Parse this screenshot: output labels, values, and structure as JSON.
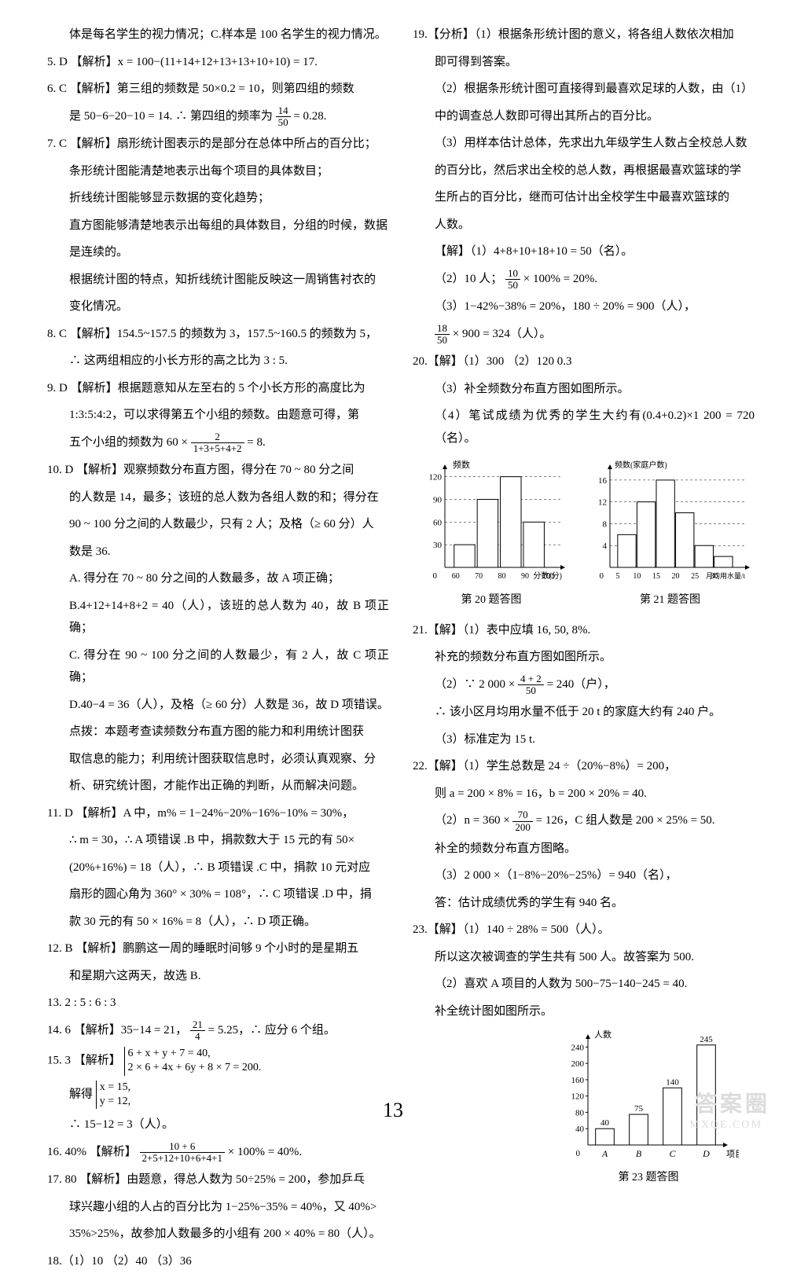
{
  "left": {
    "p0": "体是每名学生的视力情况；C.样本是 100 名学生的视力情况。",
    "p5": "5. D 【解析】x = 100−(11+14+12+13+13+10+10) = 17.",
    "p6a": "6. C 【解析】第三组的频数是 50×0.2 = 10，则第四组的频数",
    "p6b_prefix": "是 50−6−20−10 = 14. ∴ 第四组的频率为",
    "p6b_num": "14",
    "p6b_den": "50",
    "p6b_suffix": "= 0.28.",
    "p7a": "7. C 【解析】扇形统计图表示的是部分在总体中所占的百分比；",
    "p7b": "条形统计图能清楚地表示出每个项目的具体数目；",
    "p7c": "折线统计图能够显示数据的变化趋势；",
    "p7d": "直方图能够清楚地表示出每组的具体数目，分组的时候，数据",
    "p7e": "是连续的。",
    "p7f": "根据统计图的特点，知折线统计图能反映这一周销售衬衣的",
    "p7g": "变化情况。",
    "p8a": "8. C 【解析】154.5~157.5 的频数为 3，157.5~160.5 的频数为 5，",
    "p8b": "∴ 这两组相应的小长方形的高之比为 3 : 5.",
    "p9a": "9. D 【解析】根据题意知从左至右的 5 个小长方形的高度比为",
    "p9b": "1:3:5:4:2，可以求得第五个小组的频数。由题意可得，第",
    "p9c_prefix": "五个小组的频数为 60 ×",
    "p9c_num": "2",
    "p9c_den": "1+3+5+4+2",
    "p9c_suffix": "= 8.",
    "p10a": "10. D 【解析】观察频数分布直方图，得分在 70 ~ 80 分之间",
    "p10b": "的人数是 14，最多；该班的总人数为各组人数的和；得分在",
    "p10c": "90 ~ 100 分之间的人数最少，只有 2 人；及格（≥ 60 分）人",
    "p10d": "数是 36.",
    "p10e": "A. 得分在 70 ~ 80 分之间的人数最多，故 A 项正确；",
    "p10f": "B.4+12+14+8+2 = 40（人），该班的总人数为 40，故 B 项正确；",
    "p10g": "C. 得分在 90 ~ 100 分之间的人数最少，有 2 人，故 C 项正确；",
    "p10h": "D.40−4 = 36（人），及格（≥ 60 分）人数是 36，故 D 项错误。",
    "p10i": "点拨：本题考查读频数分布直方图的能力和利用统计图获",
    "p10j": "取信息的能力；利用统计图获取信息时，必须认真观察、分",
    "p10k": "析、研究统计图，才能作出正确的判断，从而解决问题。",
    "p11a": "11. D 【解析】A 中，m% = 1−24%−20%−16%−10% = 30%，",
    "p11b": "∴ m = 30，∴ A 项错误 .B 中，捐款数大于 15 元的有 50×",
    "p11c": "(20%+16%) = 18（人），∴ B 项错误 .C 中，捐款 10 元对应",
    "p11d": "扇形的圆心角为 360° × 30% = 108°，∴ C 项错误 .D 中，捐",
    "p11e": "款 30 元的有 50 × 16% = 8（人），∴ D 项正确。",
    "p12a": "12. B 【解析】鹏鹏这一周的睡眠时间够 9 个小时的是星期五",
    "p12b": "和星期六这两天，故选 B.",
    "p13": "13. 2 : 5 : 6 : 3",
    "p14_prefix": "14. 6 【解析】35−14 = 21，",
    "p14_num": "21",
    "p14_den": "4",
    "p14_suffix": "= 5.25，∴ 应分 6 个组。",
    "p15a": "15. 3 【解析】",
    "p15b": "6 + x + y + 7 = 40,",
    "p15c": "2 × 6 + 4x + 6y + 8 × 7 = 200.",
    "p15d": "解得",
    "p15e": "x = 15,",
    "p15f": "y = 12,",
    "p15g": "∴ 15−12 = 3（人）。",
    "p16_prefix": "16. 40% 【解析】",
    "p16_num": "10 + 6",
    "p16_den": "2+5+12+10+6+4+1",
    "p16_suffix": "× 100% = 40%.",
    "p17a": "17. 80 【解析】由题意，得总人数为 50÷25% = 200，参加乒乓",
    "p17b": "球兴趣小组的人占的百分比为 1−25%−35% = 40%，又 40%>",
    "p17c": "35%>25%，故参加人数最多的小组有 200 × 40% = 80（人）。",
    "p18": "18.（1）10 （2）40 （3）36"
  },
  "right": {
    "p19a": "19.【分析】（1）根据条形统计图的意义，将各组人数依次相加",
    "p19b": "即可得到答案。",
    "p19c": "（2）根据条形统计图可直接得到最喜欢足球的人数，由（1）",
    "p19d": "中的调查总人数即可得出其所占的百分比。",
    "p19e": "（3）用样本估计总体，先求出九年级学生人数占全校总人数",
    "p19f": "的百分比，然后求出全校的总人数，再根据最喜欢篮球的学",
    "p19g": "生所占的百分比，继而可估计出全校学生中最喜欢篮球的",
    "p19h": "人数。",
    "p19i": "【解】（1）4+8+10+18+10 = 50（名）。",
    "p19j_prefix": "（2）10 人；",
    "p19j_num": "10",
    "p19j_den": "50",
    "p19j_suffix": "× 100% = 20%.",
    "p19k": "（3）1−42%−38% = 20%，180 ÷ 20% = 900（人），",
    "p19l_num": "18",
    "p19l_den": "50",
    "p19l_suffix": "× 900 = 324（人）。",
    "p20a": "20.【解】（1）300 （2）120  0.3",
    "p20b": "（3）补全频数分布直方图如图所示。",
    "p20c": "（4）笔试成绩为优秀的学生大约有(0.4+0.2)×1 200 = 720（名）。",
    "chart20": {
      "ylabel": "频数",
      "xlabel": "分数(分)",
      "xticks": [
        "60",
        "70",
        "80",
        "90",
        "100"
      ],
      "yticks": [
        30,
        60,
        90,
        120
      ],
      "values": [
        30,
        90,
        120,
        60
      ],
      "bar_color": "#ffffff",
      "border_color": "#000000",
      "caption": "第 20 题答图"
    },
    "chart21": {
      "ylabel": "频数(家庭户数)",
      "xlabel": "月均用水量/t",
      "xticks": [
        "5",
        "10",
        "15",
        "20",
        "25",
        "30"
      ],
      "yticks": [
        4,
        8,
        12,
        16
      ],
      "values": [
        6,
        12,
        16,
        10,
        4,
        2
      ],
      "bar_color": "#ffffff",
      "border_color": "#000000",
      "caption": "第 21 题答图"
    },
    "p21a": "21.【解】（1）表中应填 16, 50, 8%.",
    "p21b": "补充的频数分布直方图如图所示。",
    "p21c_prefix": "（2）∵ 2 000 ×",
    "p21c_num": "4 + 2",
    "p21c_den": "50",
    "p21c_suffix": "= 240（户），",
    "p21d": "∴ 该小区月均用水量不低于 20 t 的家庭大约有 240 户。",
    "p21e": "（3）标准定为 15 t.",
    "p22a": "22.【解】（1）学生总数是 24 ÷（20%−8%）= 200，",
    "p22b": "则 a = 200 × 8% = 16，b = 200 × 20% = 40.",
    "p22c_prefix": "（2）n = 360 ×",
    "p22c_num": "70",
    "p22c_den": "200",
    "p22c_suffix": "= 126，C 组人数是 200 × 25% = 50.",
    "p22d": "补全的频数分布直方图略。",
    "p22e": "（3）2 000 ×（1−8%−20%−25%）= 940（名），",
    "p22f": "答：估计成绩优秀的学生有 940 名。",
    "p23a": "23.【解】（1）140 ÷ 28% = 500（人）。",
    "p23b": "所以这次被调查的学生共有 500 人。故答案为 500.",
    "p23c": "（2）喜欢 A 项目的人数为 500−75−140−245 = 40.",
    "p23d": "补全统计图如图所示。",
    "chart23": {
      "ylabel": "人数",
      "xlabel": "项目",
      "categories": [
        "A",
        "B",
        "C",
        "D"
      ],
      "values": [
        40,
        75,
        140,
        245
      ],
      "yticks": [
        40,
        80,
        120,
        160,
        200,
        240
      ],
      "labels": [
        "40",
        "75",
        "140",
        "245"
      ],
      "bar_color": "#ffffff",
      "border_color": "#000000",
      "caption": "第 23 题答图"
    }
  },
  "pageNum": "13",
  "watermark": "答案圈",
  "watermarkSub": "MXQE.COM"
}
